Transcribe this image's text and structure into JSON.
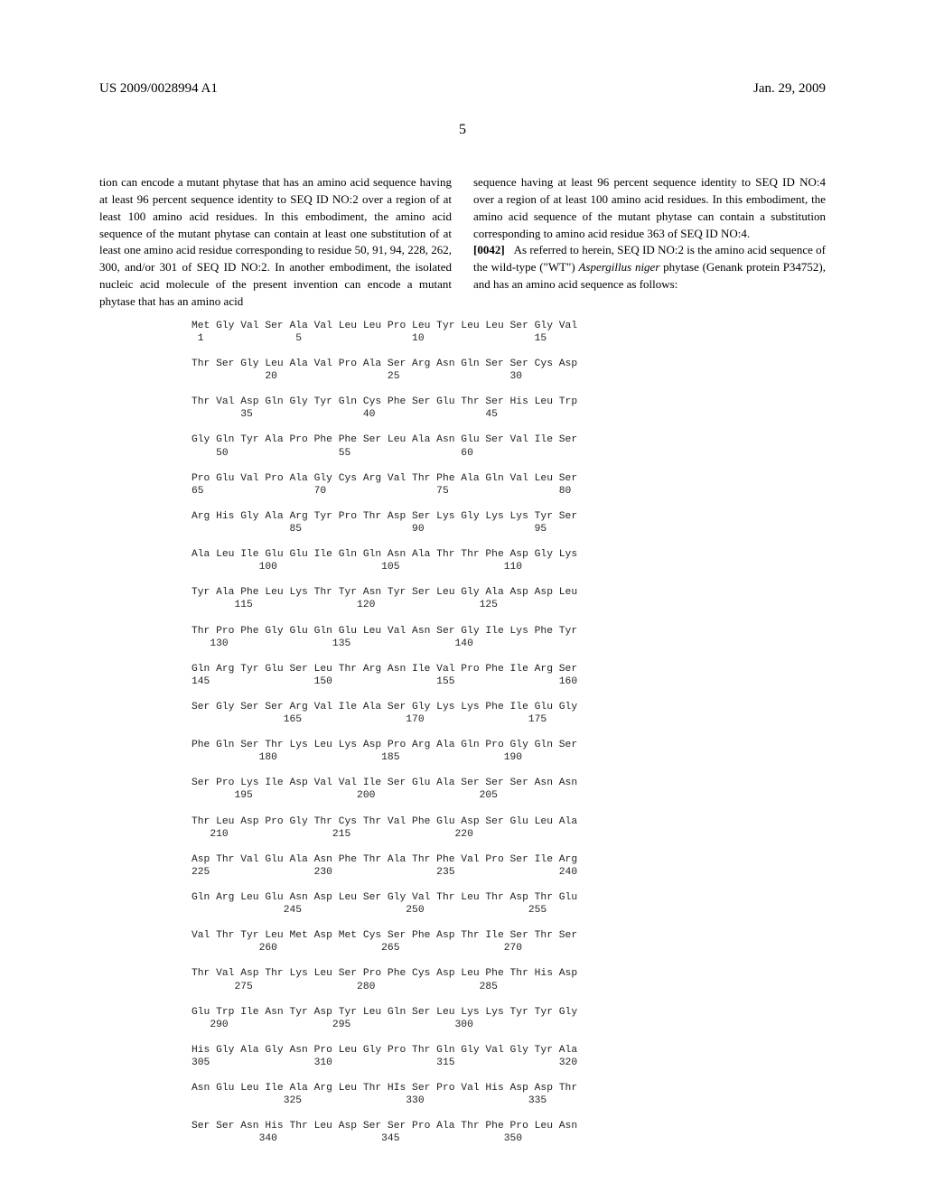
{
  "header": {
    "left": "US 2009/0028994 A1",
    "right": "Jan. 29, 2009"
  },
  "page_number": "5",
  "columns": {
    "left": {
      "text": "tion can encode a mutant phytase that has an amino acid sequence having at least 96 percent sequence identity to SEQ ID NO:2 over a region of at least 100 amino acid residues. In this embodiment, the amino acid sequence of the mutant phytase can contain at least one substitution of at least one amino acid residue corresponding to residue 50, 91, 94, 228, 262, 300, and/or 301 of SEQ ID NO:2. In another embodiment, the isolated nucleic acid molecule of the present invention can encode a mutant phytase that has an amino acid"
    },
    "right": {
      "text1": "sequence having at least 96 percent sequence identity to SEQ ID NO:4 over a region of at least 100 amino acid residues. In this embodiment, the amino acid sequence of the mutant phytase can contain a substitution corresponding to amino acid residue 363 of SEQ ID NO:4.",
      "para_num": "[0042]",
      "text2": "As referred to herein, SEQ ID NO:2 is the amino acid sequence of the wild-type (\"WT\") ",
      "italic": "Aspergillus niger",
      "text3": " phytase (Genank protein P34752), and has an amino acid sequence as follows:"
    }
  },
  "sequence": {
    "font_family": "Courier New",
    "font_size": 11.3,
    "color": "#222222",
    "rows": [
      {
        "aa": "Met Gly Val Ser Ala Val Leu Leu Pro Leu Tyr Leu Leu Ser Gly Val",
        "num": " 1               5                  10                  15"
      },
      {
        "aa": "Thr Ser Gly Leu Ala Val Pro Ala Ser Arg Asn Gln Ser Ser Cys Asp",
        "num": "            20                  25                  30"
      },
      {
        "aa": "Thr Val Asp Gln Gly Tyr Gln Cys Phe Ser Glu Thr Ser His Leu Trp",
        "num": "        35                  40                  45"
      },
      {
        "aa": "Gly Gln Tyr Ala Pro Phe Phe Ser Leu Ala Asn Glu Ser Val Ile Ser",
        "num": "    50                  55                  60"
      },
      {
        "aa": "Pro Glu Val Pro Ala Gly Cys Arg Val Thr Phe Ala Gln Val Leu Ser",
        "num": "65                  70                  75                  80"
      },
      {
        "aa": "Arg His Gly Ala Arg Tyr Pro Thr Asp Ser Lys Gly Lys Lys Tyr Ser",
        "num": "                85                  90                  95"
      },
      {
        "aa": "Ala Leu Ile Glu Glu Ile Gln Gln Asn Ala Thr Thr Phe Asp Gly Lys",
        "num": "           100                 105                 110"
      },
      {
        "aa": "Tyr Ala Phe Leu Lys Thr Tyr Asn Tyr Ser Leu Gly Ala Asp Asp Leu",
        "num": "       115                 120                 125"
      },
      {
        "aa": "Thr Pro Phe Gly Glu Gln Glu Leu Val Asn Ser Gly Ile Lys Phe Tyr",
        "num": "   130                 135                 140"
      },
      {
        "aa": "Gln Arg Tyr Glu Ser Leu Thr Arg Asn Ile Val Pro Phe Ile Arg Ser",
        "num": "145                 150                 155                 160"
      },
      {
        "aa": "Ser Gly Ser Ser Arg Val Ile Ala Ser Gly Lys Lys Phe Ile Glu Gly",
        "num": "               165                 170                 175"
      },
      {
        "aa": "Phe Gln Ser Thr Lys Leu Lys Asp Pro Arg Ala Gln Pro Gly Gln Ser",
        "num": "           180                 185                 190"
      },
      {
        "aa": "Ser Pro Lys Ile Asp Val Val Ile Ser Glu Ala Ser Ser Ser Asn Asn",
        "num": "       195                 200                 205"
      },
      {
        "aa": "Thr Leu Asp Pro Gly Thr Cys Thr Val Phe Glu Asp Ser Glu Leu Ala",
        "num": "   210                 215                 220"
      },
      {
        "aa": "Asp Thr Val Glu Ala Asn Phe Thr Ala Thr Phe Val Pro Ser Ile Arg",
        "num": "225                 230                 235                 240"
      },
      {
        "aa": "Gln Arg Leu Glu Asn Asp Leu Ser Gly Val Thr Leu Thr Asp Thr Glu",
        "num": "               245                 250                 255"
      },
      {
        "aa": "Val Thr Tyr Leu Met Asp Met Cys Ser Phe Asp Thr Ile Ser Thr Ser",
        "num": "           260                 265                 270"
      },
      {
        "aa": "Thr Val Asp Thr Lys Leu Ser Pro Phe Cys Asp Leu Phe Thr His Asp",
        "num": "       275                 280                 285"
      },
      {
        "aa": "Glu Trp Ile Asn Tyr Asp Tyr Leu Gln Ser Leu Lys Lys Tyr Tyr Gly",
        "num": "   290                 295                 300"
      },
      {
        "aa": "His Gly Ala Gly Asn Pro Leu Gly Pro Thr Gln Gly Val Gly Tyr Ala",
        "num": "305                 310                 315                 320"
      },
      {
        "aa": "Asn Glu Leu Ile Ala Arg Leu Thr HIs Ser Pro Val His Asp Asp Thr",
        "num": "               325                 330                 335"
      },
      {
        "aa": "Ser Ser Asn His Thr Leu Asp Ser Ser Pro Ala Thr Phe Pro Leu Asn",
        "num": "           340                 345                 350"
      }
    ]
  },
  "style": {
    "background_color": "#ffffff",
    "text_color": "#000000",
    "body_font": "Times New Roman",
    "body_font_size": 13,
    "header_font_size": 15
  }
}
